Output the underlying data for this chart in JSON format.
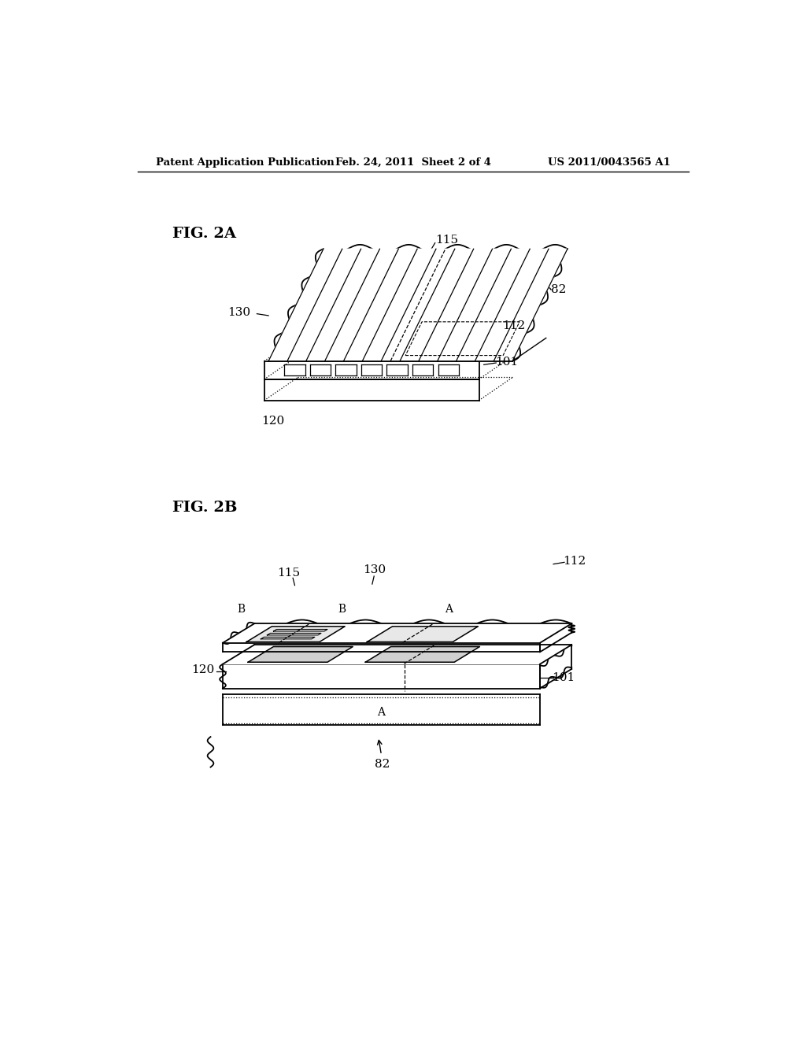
{
  "bg_color": "#ffffff",
  "line_color": "#000000",
  "header_left": "Patent Application Publication",
  "header_mid": "Feb. 24, 2011  Sheet 2 of 4",
  "header_right": "US 2011/0043565 A1",
  "fig2a_label": "FIG. 2A",
  "fig2b_label": "FIG. 2B"
}
